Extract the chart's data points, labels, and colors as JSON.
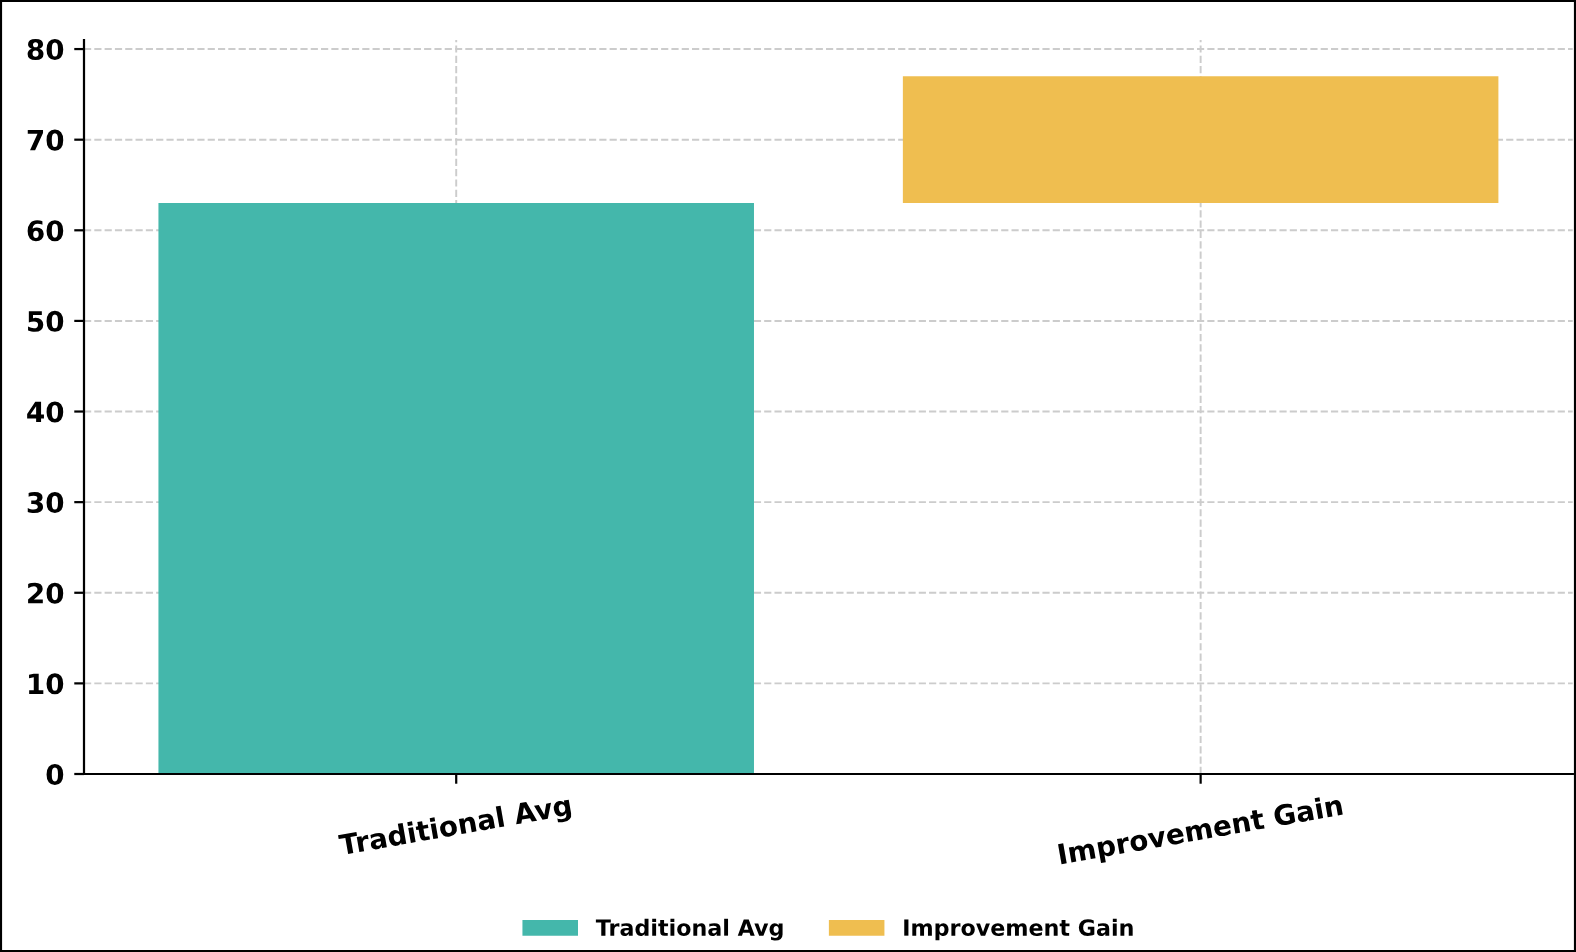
{
  "chart_data": {
    "type": "bar",
    "categories": [
      "Traditional Avg",
      "Improvement Gain"
    ],
    "series": [
      {
        "name": "Traditional Avg",
        "color": "#44b7ab",
        "values": [
          63,
          null
        ]
      },
      {
        "name": "Improvement Gain",
        "color": "#efbe50",
        "values": [
          null,
          14
        ],
        "base": [
          null,
          63
        ]
      }
    ],
    "ylim": [
      0,
      81
    ],
    "yticks": [
      0,
      10,
      20,
      30,
      40,
      50,
      60,
      70,
      80
    ],
    "grid": true,
    "legend": "bottom"
  }
}
